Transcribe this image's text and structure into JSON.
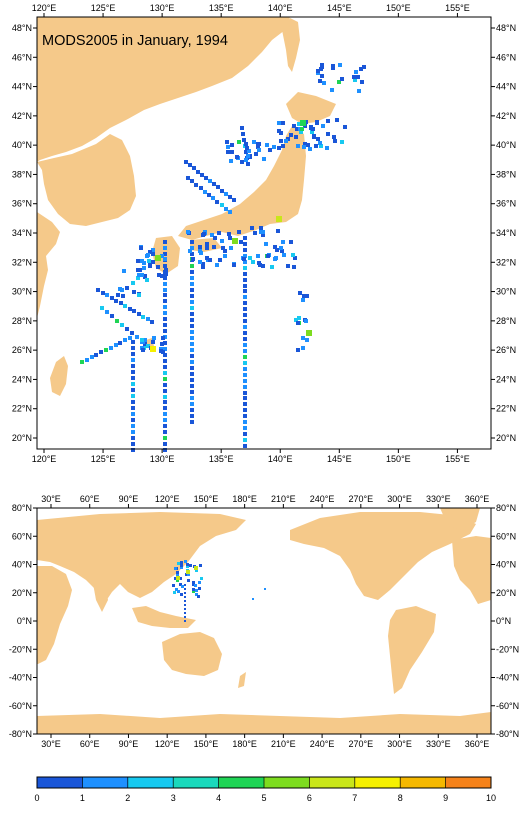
{
  "top_map": {
    "title": "MODS2005 in January, 1994",
    "x_ticks": [
      "120°E",
      "125°E",
      "130°E",
      "135°E",
      "140°E",
      "145°E",
      "150°E",
      "155°E"
    ],
    "y_ticks": [
      "48°N",
      "46°N",
      "44°N",
      "42°N",
      "40°N",
      "38°N",
      "36°N",
      "34°N",
      "32°N",
      "30°N",
      "28°N",
      "26°N",
      "24°N",
      "22°N",
      "20°N"
    ],
    "lon_range": [
      119.5,
      157.5
    ],
    "lat_range": [
      18.5,
      49.5
    ]
  },
  "bottom_map": {
    "x_ticks": [
      "30°E",
      "60°E",
      "90°E",
      "120°E",
      "150°E",
      "180°E",
      "210°E",
      "240°E",
      "270°E",
      "300°E",
      "330°E",
      "360°E"
    ],
    "y_ticks": [
      "80°N",
      "60°N",
      "40°N",
      "20°N",
      "0°N",
      "-20°N",
      "-40°N",
      "-60°N",
      "-80°N"
    ],
    "lon_range": [
      20,
      380
    ],
    "lat_range": [
      -80,
      80
    ]
  },
  "colorbar": {
    "labels": [
      "0",
      "1",
      "2",
      "3",
      "4",
      "5",
      "6",
      "7",
      "8",
      "9",
      "10"
    ],
    "colors": [
      "#1a56d8",
      "#1e90ff",
      "#17c9f0",
      "#1ad9bc",
      "#1fd455",
      "#7ddc1f",
      "#c9e61a",
      "#f5f000",
      "#f5b800",
      "#f5821a",
      "#f04e1a"
    ]
  },
  "colors": {
    "land": "#f5c98a",
    "ocean": "#ffffff",
    "frame": "#000000"
  }
}
